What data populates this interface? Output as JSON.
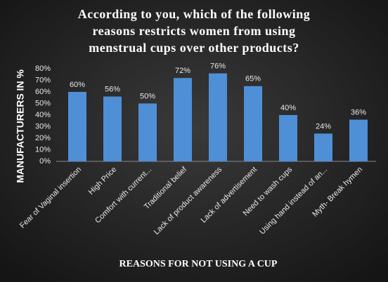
{
  "chart_data": {
    "type": "bar",
    "title": [
      "According to you, which of the following",
      "reasons restricts women from using",
      "menstrual cups over other products?"
    ],
    "ylabel": "MANUFACTURERS IN %",
    "xlabel": "REASONS FOR NOT USING A CUP",
    "categories": [
      "Fear of Vaginal insertion",
      "High Price",
      "Comfort with current...",
      "Traditional belief",
      "Lack of product awareness",
      "Lack of advertisement",
      "Need to wash cups",
      "Using hand instead of an...",
      "Myth- Break hymen"
    ],
    "values": [
      60,
      56,
      50,
      72,
      76,
      65,
      40,
      24,
      36
    ],
    "value_labels": [
      "60%",
      "56%",
      "50%",
      "72%",
      "76%",
      "65%",
      "40%",
      "24%",
      "36%"
    ],
    "color": "#4f8fd6",
    "ylim": [
      0,
      80
    ],
    "yticks": [
      {
        "value": 0,
        "label": "0%"
      },
      {
        "value": 10,
        "label": "10%"
      },
      {
        "value": 20,
        "label": "20%"
      },
      {
        "value": 30,
        "label": "30%"
      },
      {
        "value": 40,
        "label": "40%"
      },
      {
        "value": 50,
        "label": "50%"
      },
      {
        "value": 60,
        "label": "60%"
      },
      {
        "value": 70,
        "label": "70%"
      },
      {
        "value": 80,
        "label": "80%"
      }
    ],
    "grid": false
  }
}
